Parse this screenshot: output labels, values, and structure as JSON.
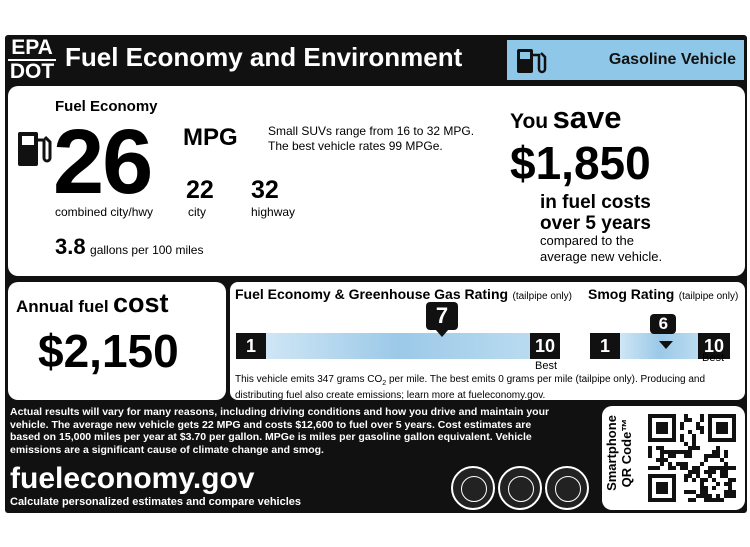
{
  "header": {
    "agency_top": "EPA",
    "agency_bottom": "DOT",
    "title": "Fuel Economy and Environment",
    "vehicle_type": "Gasoline Vehicle"
  },
  "fuel_economy": {
    "heading": "Fuel Economy",
    "combined": "26",
    "unit": "MPG",
    "combined_label": "combined city/hwy",
    "city": "22",
    "city_label": "city",
    "highway": "32",
    "highway_label": "highway",
    "range_line1": "Small SUVs range from 16 to 32 MPG.",
    "range_line2": "The best vehicle rates 99 MPGe.",
    "gallons": "3.8",
    "gallons_label": "gallons per 100 miles"
  },
  "savings": {
    "you": "You",
    "save": "save",
    "amount": "$1,850",
    "line1": "in fuel costs",
    "line2": "over 5 years",
    "line3": "compared to the",
    "line4": "average new vehicle."
  },
  "annual_cost": {
    "label_small": "Annual fuel",
    "label_big": "cost",
    "amount": "$2,150"
  },
  "ghg_rating": {
    "title": "Fuel Economy & Greenhouse Gas Rating",
    "qualifier": "(tailpipe only)",
    "min": "1",
    "max": "10",
    "value": 7,
    "value_label": "7",
    "best_label": "Best"
  },
  "smog_rating": {
    "title": "Smog Rating",
    "qualifier": "(tailpipe only)",
    "min": "1",
    "max": "10",
    "value": 6,
    "value_label": "6",
    "best_label": "Best"
  },
  "emissions_note": {
    "line1_a": "This vehicle emits 347 grams CO",
    "line1_sub": "2",
    "line1_b": " per mile. The best emits 0 grams per mile (tailpipe only). Producing and",
    "line2": "distributing fuel also create emissions; learn more at fueleconomy.gov."
  },
  "disclaimer": {
    "line1": "Actual results will vary for many reasons, including driving conditions and how you drive and maintain your",
    "line2": "vehicle. The average new vehicle gets 22 MPG and costs $12,600 to fuel over 5 years. Cost estimates are",
    "line3": "based on 15,000 miles per year at $3.70 per gallon. MPGe is miles per gasoline gallon equivalent. Vehicle",
    "line4": "emissions are a significant cause of climate change and smog."
  },
  "footer": {
    "site": "fueleconomy.gov",
    "tagline": "Calculate personalized estimates and compare vehicles",
    "qr_line1": "Smartphone",
    "qr_line2": "QR Code™"
  },
  "colors": {
    "label_black": "#111111",
    "gas_blue": "#8fc7e8"
  }
}
